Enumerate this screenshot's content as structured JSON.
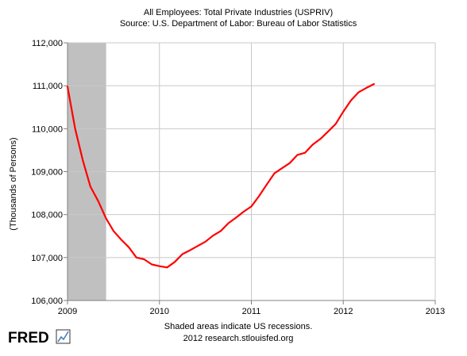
{
  "chart_data": {
    "type": "line",
    "title": "All Employees: Total Private Industries (USPRIV)",
    "subtitle": "Source: U.S. Department of Labor: Bureau of Labor Statistics",
    "ylabel": "(Thousands of Persons)",
    "xlabel": "",
    "xlim": [
      2009,
      2013
    ],
    "ylim": [
      106000,
      112000
    ],
    "x_ticks": [
      "2009",
      "2010",
      "2011",
      "2012",
      "2013"
    ],
    "y_ticks": [
      "106,000",
      "107,000",
      "108,000",
      "109,000",
      "110,000",
      "111,000",
      "112,000"
    ],
    "grid": true,
    "recession": {
      "start": 2009.0,
      "end": 2009.42
    },
    "series": [
      {
        "color": "#ff0000",
        "x": [
          2009.0,
          2009.083,
          2009.167,
          2009.25,
          2009.333,
          2009.417,
          2009.5,
          2009.583,
          2009.667,
          2009.75,
          2009.833,
          2009.917,
          2010.0,
          2010.083,
          2010.167,
          2010.25,
          2010.333,
          2010.417,
          2010.5,
          2010.583,
          2010.667,
          2010.75,
          2010.833,
          2010.917,
          2011.0,
          2011.083,
          2011.167,
          2011.25,
          2011.333,
          2011.417,
          2011.5,
          2011.583,
          2011.667,
          2011.75,
          2011.833,
          2011.917,
          2012.0,
          2012.083,
          2012.167,
          2012.25,
          2012.333
        ],
        "values": [
          110980,
          110000,
          109260,
          108650,
          108320,
          107920,
          107620,
          107420,
          107240,
          107000,
          106960,
          106840,
          106800,
          106770,
          106900,
          107080,
          107170,
          107270,
          107370,
          107510,
          107620,
          107800,
          107930,
          108070,
          108190,
          108430,
          108700,
          108960,
          109080,
          109200,
          109390,
          109440,
          109630,
          109760,
          109930,
          110110,
          110400,
          110660,
          110850,
          110950,
          111040
        ]
      }
    ],
    "footer_note": "Shaded areas indicate US recessions.",
    "footer_source": "2012 research.stlouisfed.org",
    "logo_text": "FRED",
    "colors": {
      "recession": "#c0c0c0",
      "grid": "#c8c8c8",
      "line": "#ff0000"
    }
  }
}
